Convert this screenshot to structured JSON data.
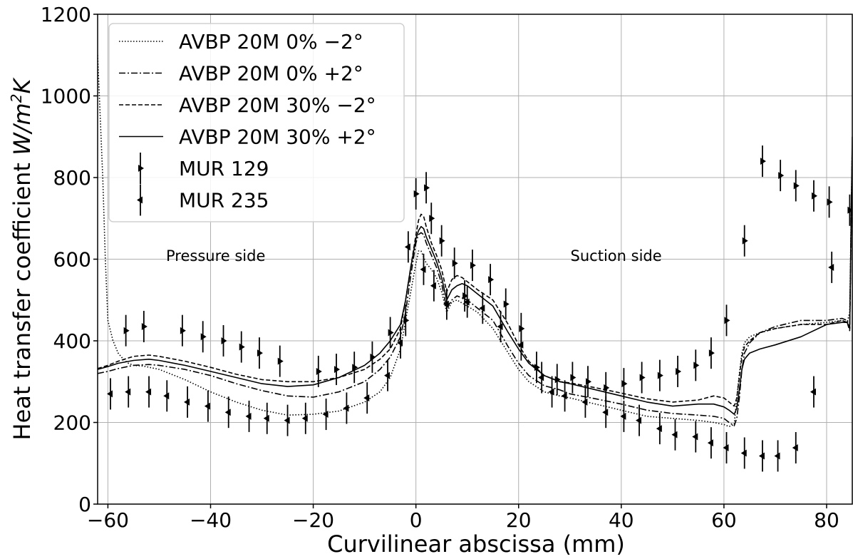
{
  "chart_data": {
    "type": "line",
    "title": "",
    "xlabel": "Curvilinear abscissa (mm)",
    "ylabel": "Heat transfer coefficient W/m²K",
    "ylabel_parts": {
      "text": "Heat transfer coefficient ",
      "unit_w": "W/m",
      "unit_sup": "2",
      "unit_k": "K"
    },
    "xlim": [
      -62,
      85
    ],
    "ylim": [
      0,
      1200
    ],
    "xticks": [
      -60,
      -40,
      -20,
      0,
      20,
      40,
      60,
      80
    ],
    "yticks": [
      0,
      200,
      400,
      600,
      800,
      1000,
      1200
    ],
    "grid": true,
    "legend_position": "top-left",
    "annotations": [
      {
        "text": "Pressure side",
        "x": -39,
        "y": 610
      },
      {
        "text": "Suction side",
        "x": 39,
        "y": 610
      }
    ],
    "series": [
      {
        "name": "AVBP 20M 0% −2°",
        "style": "dotted",
        "x": [
          -62,
          -61.5,
          -61,
          -60.5,
          -60,
          -59,
          -58,
          -57,
          -56,
          -55,
          -53,
          -50,
          -45,
          -40,
          -35,
          -30,
          -25,
          -20,
          -15,
          -10,
          -7,
          -5,
          -3,
          -2,
          -1,
          0,
          0.5,
          1,
          1.5,
          2,
          3,
          4,
          5,
          6,
          7,
          8,
          10,
          12,
          15,
          18,
          20,
          22,
          25,
          28,
          30,
          35,
          40,
          45,
          50,
          55,
          58,
          60,
          61,
          62,
          62.5,
          63,
          63.5,
          64,
          65,
          67,
          70,
          75,
          80,
          83,
          84,
          84.5,
          85
        ],
        "y": [
          1100,
          950,
          800,
          600,
          450,
          400,
          370,
          355,
          345,
          340,
          338,
          330,
          305,
          275,
          250,
          230,
          218,
          220,
          228,
          250,
          275,
          310,
          380,
          450,
          520,
          590,
          620,
          620,
          605,
          590,
          575,
          555,
          520,
          470,
          495,
          500,
          485,
          470,
          430,
          370,
          330,
          300,
          275,
          265,
          260,
          245,
          230,
          215,
          210,
          205,
          200,
          195,
          190,
          195,
          260,
          320,
          370,
          395,
          410,
          420,
          430,
          440,
          445,
          450,
          445,
          470,
          880
        ]
      },
      {
        "name": "AVBP 20M 0% +2°",
        "style": "dashdot",
        "x": [
          -62,
          -60,
          -58,
          -55,
          -52,
          -50,
          -45,
          -40,
          -35,
          -30,
          -25,
          -20,
          -15,
          -10,
          -7,
          -5,
          -3,
          -2,
          -1,
          0,
          0.5,
          1,
          1.5,
          2,
          3,
          4,
          5,
          6,
          7,
          8,
          9,
          10,
          12,
          15,
          18,
          20,
          22,
          25,
          28,
          30,
          35,
          40,
          45,
          50,
          55,
          58,
          60,
          61,
          62,
          62.5,
          63,
          63.5,
          64,
          65,
          67,
          70,
          75,
          80,
          83,
          84,
          84.5,
          85
        ],
        "y": [
          320,
          325,
          332,
          340,
          342,
          340,
          330,
          315,
          295,
          278,
          265,
          262,
          275,
          300,
          330,
          360,
          410,
          470,
          560,
          640,
          660,
          665,
          660,
          640,
          610,
          580,
          540,
          480,
          500,
          510,
          505,
          500,
          480,
          450,
          385,
          345,
          315,
          290,
          280,
          270,
          258,
          245,
          230,
          222,
          218,
          215,
          210,
          200,
          192,
          210,
          260,
          330,
          370,
          395,
          420,
          435,
          450,
          450,
          455,
          450,
          430,
          860
        ]
      },
      {
        "name": "AVBP 20M 30% −2°",
        "style": "dashed",
        "x": [
          -62,
          -60,
          -58,
          -55,
          -52,
          -50,
          -45,
          -40,
          -35,
          -30,
          -25,
          -20,
          -15,
          -10,
          -7,
          -5,
          -3,
          -2,
          -1,
          0,
          0.5,
          1,
          1.5,
          2,
          3,
          4,
          5,
          6,
          7,
          8,
          9,
          10,
          12,
          15,
          18,
          20,
          22,
          25,
          28,
          30,
          35,
          40,
          45,
          50,
          55,
          58,
          60,
          61,
          62,
          62.5,
          63,
          63.5,
          64,
          65,
          67,
          70,
          75,
          80,
          83,
          84,
          84.5,
          85
        ],
        "y": [
          332,
          340,
          350,
          362,
          365,
          362,
          350,
          335,
          318,
          305,
          300,
          300,
          310,
          330,
          355,
          380,
          430,
          500,
          580,
          660,
          695,
          710,
          705,
          680,
          640,
          610,
          575,
          520,
          550,
          560,
          555,
          545,
          525,
          500,
          440,
          390,
          350,
          315,
          300,
          297,
          285,
          272,
          258,
          250,
          255,
          265,
          260,
          250,
          240,
          260,
          310,
          360,
          385,
          400,
          420,
          430,
          440,
          440,
          450,
          445,
          425,
          880
        ]
      },
      {
        "name": "AVBP 20M 30% +2°",
        "style": "solid",
        "x": [
          -62,
          -60,
          -58,
          -55,
          -52,
          -50,
          -45,
          -40,
          -35,
          -30,
          -25,
          -20,
          -15,
          -10,
          -7,
          -5,
          -3,
          -2,
          -1,
          0,
          0.5,
          1,
          1.5,
          2,
          3,
          4,
          5,
          6,
          7,
          8,
          9,
          10,
          12,
          15,
          18,
          20,
          22,
          25,
          28,
          30,
          35,
          40,
          45,
          50,
          55,
          58,
          60,
          61,
          62,
          62.5,
          63,
          63.5,
          64,
          65,
          67,
          70,
          75,
          80,
          83,
          84,
          84.5,
          85
        ],
        "y": [
          330,
          337,
          345,
          352,
          355,
          352,
          340,
          325,
          310,
          295,
          288,
          292,
          310,
          340,
          370,
          400,
          440,
          500,
          580,
          650,
          670,
          680,
          675,
          655,
          625,
          595,
          555,
          500,
          525,
          535,
          540,
          535,
          515,
          485,
          420,
          380,
          345,
          315,
          300,
          295,
          280,
          265,
          250,
          240,
          245,
          245,
          238,
          230,
          220,
          235,
          280,
          330,
          355,
          370,
          380,
          390,
          410,
          440,
          445,
          445,
          430,
          900
        ]
      },
      {
        "name": "MUR 129",
        "style": "marker-right",
        "x": [
          -56.5,
          -53,
          -45.5,
          -41.5,
          -37.5,
          -34,
          -30.5,
          -26.5,
          -19,
          -15.5,
          -12,
          -8.5,
          -5,
          -2,
          0,
          2,
          3,
          5,
          7.5,
          9.5,
          11,
          14.5,
          17.5,
          20.5,
          23.5,
          27.5,
          30.5,
          33.5,
          37,
          40.5,
          44,
          47.5,
          51,
          54.5,
          57.5,
          60.5,
          64,
          67.5,
          71,
          74,
          77.5,
          80.5,
          84.5
        ],
        "y": [
          425,
          435,
          425,
          410,
          400,
          385,
          370,
          350,
          325,
          330,
          335,
          360,
          420,
          450,
          760,
          775,
          700,
          645,
          590,
          510,
          585,
          550,
          490,
          430,
          335,
          305,
          310,
          300,
          285,
          295,
          310,
          315,
          325,
          340,
          370,
          450,
          645,
          840,
          805,
          780,
          755,
          740,
          720
        ]
      },
      {
        "name": "MUR 235",
        "style": "marker-left",
        "x": [
          -59.5,
          -56,
          -52,
          -48.5,
          -44.5,
          -40.5,
          -36.5,
          -32.5,
          -29,
          -25,
          -21.5,
          -17.5,
          -13.5,
          -9.5,
          -5.5,
          -3,
          -1.5,
          1.5,
          3.5,
          6,
          10,
          13,
          16.5,
          20.5,
          24.5,
          26.5,
          29,
          33,
          37,
          40.5,
          43.5,
          47.5,
          50.5,
          54.5,
          57.5,
          60.5,
          64,
          67.5,
          70.5,
          74,
          77.5,
          81
        ],
        "y": [
          270,
          275,
          275,
          265,
          250,
          240,
          225,
          215,
          210,
          205,
          210,
          220,
          235,
          260,
          315,
          395,
          630,
          575,
          535,
          490,
          495,
          480,
          435,
          390,
          310,
          275,
          265,
          250,
          225,
          215,
          205,
          185,
          170,
          165,
          150,
          138,
          125,
          118,
          118,
          138,
          275,
          580
        ]
      }
    ]
  }
}
